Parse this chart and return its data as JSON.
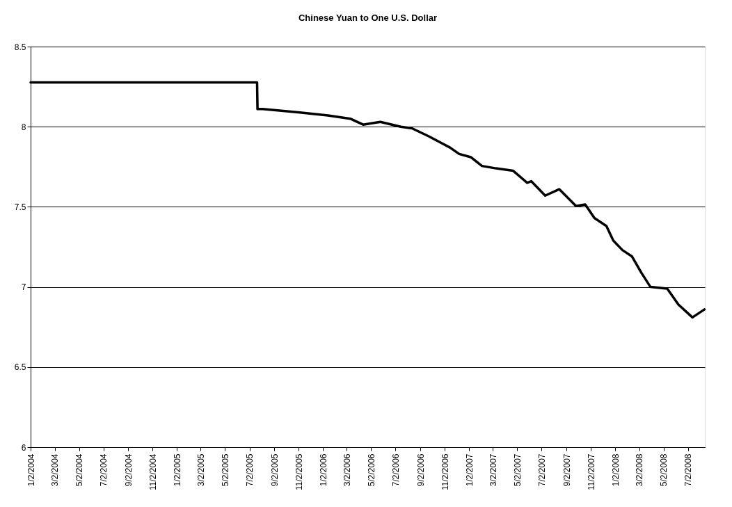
{
  "chart_data": {
    "type": "line",
    "title": "Chinese Yuan to One U.S. Dollar",
    "x": [
      "2004-01-02",
      "2004-06-01",
      "2004-12-01",
      "2005-04-01",
      "2005-07-21",
      "2005-07-22",
      "2005-08-04",
      "2005-11-01",
      "2006-01-14",
      "2006-03-11",
      "2006-04-12",
      "2006-05-25",
      "2006-07-15",
      "2006-08-12",
      "2006-09-23",
      "2006-10-16",
      "2006-11-15",
      "2006-12-08",
      "2007-01-06",
      "2007-02-03",
      "2007-03-10",
      "2007-04-22",
      "2007-05-27",
      "2007-06-06",
      "2007-07-11",
      "2007-08-15",
      "2007-09-26",
      "2007-10-19",
      "2007-11-11",
      "2007-12-11",
      "2007-12-28",
      "2008-01-20",
      "2008-02-13",
      "2008-03-07",
      "2008-03-30",
      "2008-05-11",
      "2008-06-08",
      "2008-07-13",
      "2008-08-12"
    ],
    "series": [
      {
        "color": "#000000",
        "values": [
          8.277,
          8.277,
          8.276,
          8.276,
          8.276,
          8.11,
          8.11,
          8.09,
          8.07,
          8.05,
          8.013,
          8.03,
          8.0,
          7.99,
          7.94,
          7.91,
          7.87,
          7.83,
          7.81,
          7.755,
          7.74,
          7.725,
          7.65,
          7.66,
          7.57,
          7.61,
          7.505,
          7.515,
          7.43,
          7.38,
          7.29,
          7.23,
          7.19,
          7.09,
          7.0,
          6.99,
          6.89,
          6.81,
          6.86
        ]
      }
    ],
    "ylim": [
      6,
      8.5
    ],
    "yticks": [
      6,
      6.5,
      7,
      7.5,
      8,
      8.5
    ],
    "xlim": [
      "2004-01-02",
      "2008-08-13"
    ],
    "xticks": [
      {
        "value": "2004-01-02",
        "label": "1/2/2004"
      },
      {
        "value": "2004-03-02",
        "label": "3/2/2004"
      },
      {
        "value": "2004-05-02",
        "label": "5/2/2004"
      },
      {
        "value": "2004-07-02",
        "label": "7/2/2004"
      },
      {
        "value": "2004-09-02",
        "label": "9/2/2004"
      },
      {
        "value": "2004-11-02",
        "label": "11/2/2004"
      },
      {
        "value": "2005-01-02",
        "label": "1/2/2005"
      },
      {
        "value": "2005-03-02",
        "label": "3/2/2005"
      },
      {
        "value": "2005-05-02",
        "label": "5/2/2005"
      },
      {
        "value": "2005-07-02",
        "label": "7/2/2005"
      },
      {
        "value": "2005-09-02",
        "label": "9/2/2005"
      },
      {
        "value": "2005-11-02",
        "label": "11/2/2005"
      },
      {
        "value": "2006-01-02",
        "label": "1/2/2006"
      },
      {
        "value": "2006-03-02",
        "label": "3/2/2006"
      },
      {
        "value": "2006-05-02",
        "label": "5/2/2006"
      },
      {
        "value": "2006-07-02",
        "label": "7/2/2006"
      },
      {
        "value": "2006-09-02",
        "label": "9/2/2006"
      },
      {
        "value": "2006-11-02",
        "label": "11/2/2006"
      },
      {
        "value": "2007-01-02",
        "label": "1/2/2007"
      },
      {
        "value": "2007-03-02",
        "label": "3/2/2007"
      },
      {
        "value": "2007-05-02",
        "label": "5/2/2007"
      },
      {
        "value": "2007-07-02",
        "label": "7/2/2007"
      },
      {
        "value": "2007-09-02",
        "label": "9/2/2007"
      },
      {
        "value": "2007-11-02",
        "label": "11/2/2007"
      },
      {
        "value": "2008-01-02",
        "label": "1/2/2008"
      },
      {
        "value": "2008-03-02",
        "label": "3/2/2008"
      },
      {
        "value": "2008-05-02",
        "label": "5/2/2008"
      },
      {
        "value": "2008-07-02",
        "label": "7/2/2008"
      }
    ],
    "grid": "y",
    "marker": "none",
    "line_style": "solid"
  }
}
